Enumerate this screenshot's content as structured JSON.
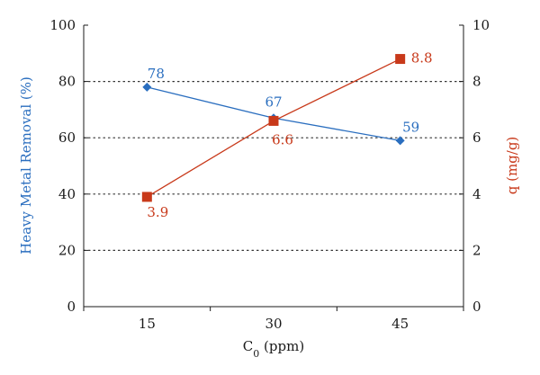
{
  "chart_data": {
    "type": "line",
    "title": "",
    "xlabel_main": "C",
    "xlabel_sub": "0",
    "xlabel_tail": " (ppm)",
    "x_ticks": [
      "15",
      "30",
      "45"
    ],
    "x": [
      15,
      30,
      45
    ],
    "xlim": [
      0,
      3
    ],
    "ylabel_left": "Heavy Metal Removal (%)",
    "ylabel_right": "q (mg/g)",
    "ylim_left": [
      0,
      100
    ],
    "ylim_right": [
      0,
      10
    ],
    "yticks_left": [
      "0",
      "20",
      "40",
      "60",
      "80",
      "100"
    ],
    "yticks_right": [
      "0",
      "2",
      "4",
      "6",
      "8",
      "10"
    ],
    "grid": "horizontal dotted",
    "series": [
      {
        "axis": "left",
        "marker": "diamond",
        "color": "#2a6ebf",
        "values": [
          78,
          67,
          59
        ],
        "labels": [
          "78",
          "67",
          "59"
        ]
      },
      {
        "axis": "right",
        "marker": "square",
        "color": "#c8391a",
        "values": [
          3.9,
          6.6,
          8.8
        ],
        "labels": [
          "3.9",
          "6.6",
          "8.8"
        ]
      }
    ]
  }
}
